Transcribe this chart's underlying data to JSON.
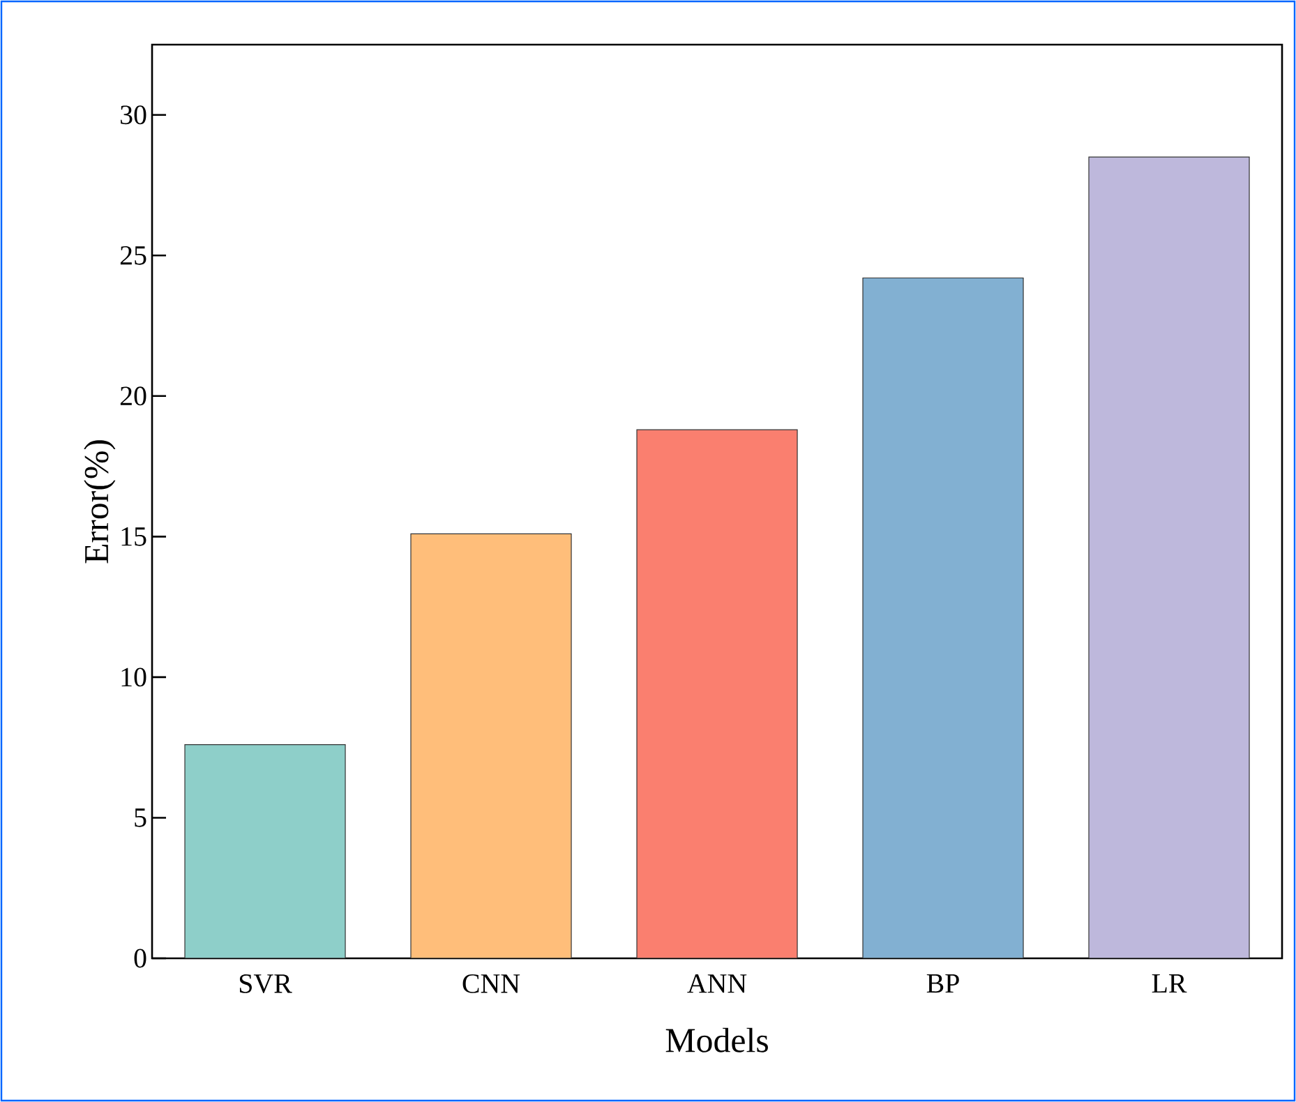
{
  "chart_data": {
    "type": "bar",
    "xlabel": "Models",
    "ylabel": "Error(%)",
    "categories": [
      "SVR",
      "CNN",
      "ANN",
      "BP",
      "LR"
    ],
    "values": [
      7.6,
      15.1,
      18.8,
      24.2,
      28.5
    ],
    "colors": [
      "#8ecfc9",
      "#ffbe7a",
      "#fa7f6f",
      "#82b0d2",
      "#beb8dc"
    ],
    "ylim": [
      0,
      32.5
    ],
    "yticks": [
      0,
      5,
      10,
      15,
      20,
      25,
      30
    ]
  }
}
